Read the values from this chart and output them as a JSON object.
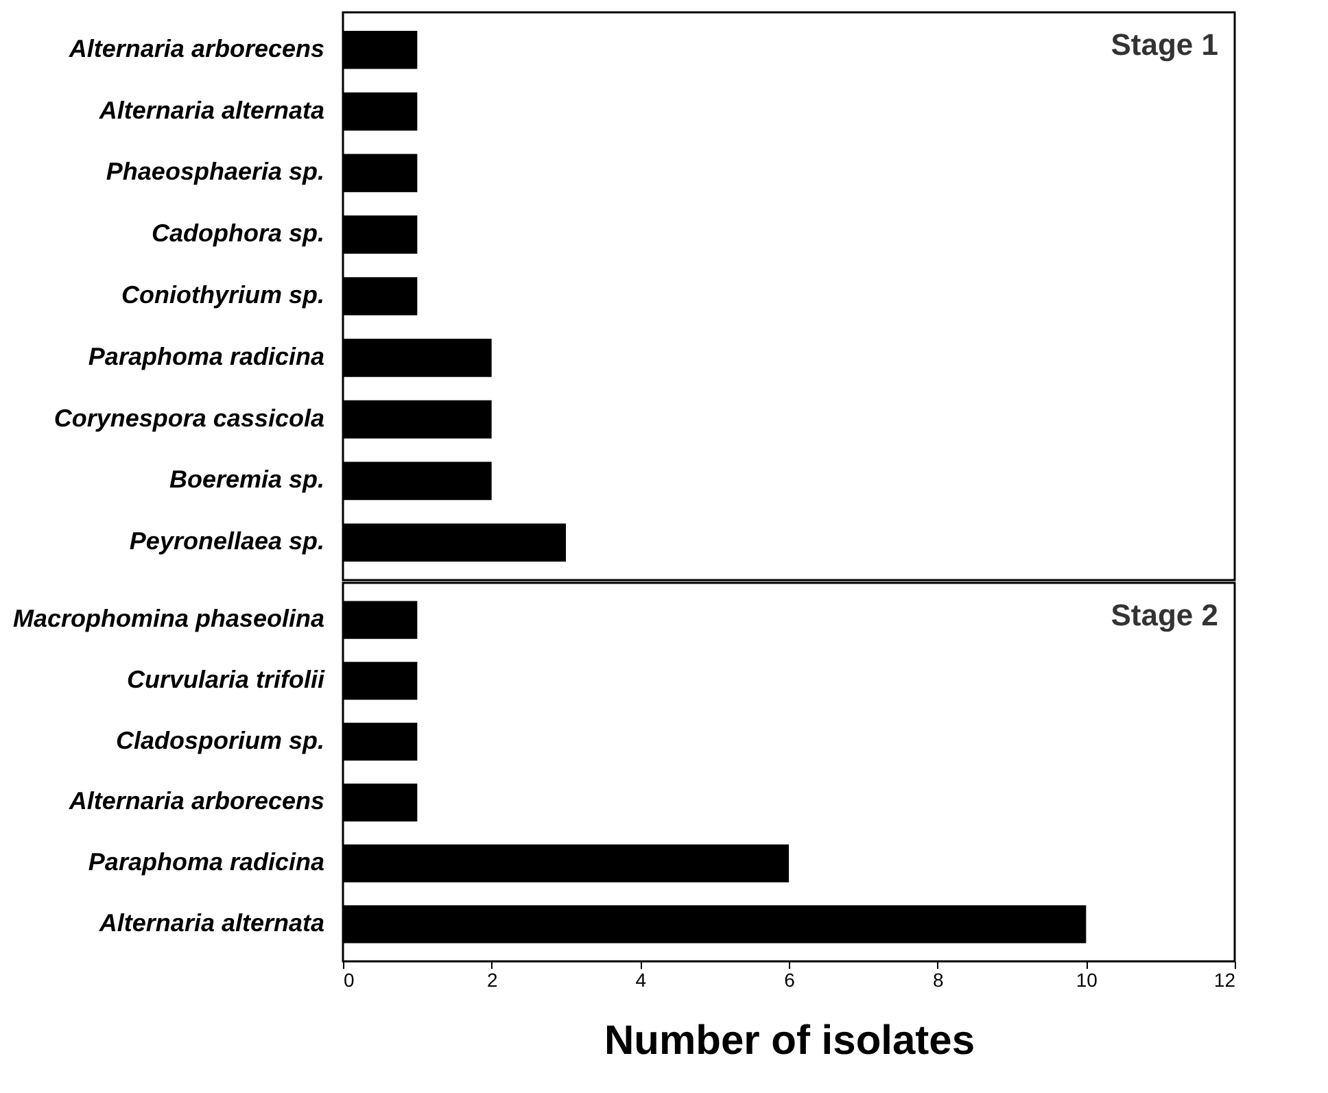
{
  "chart_data": [
    {
      "type": "bar",
      "orientation": "horizontal",
      "categories": [
        "Alternaria arborecens",
        "Alternaria alternata",
        "Phaeosphaeria sp.",
        "Cadophora sp.",
        "Coniothyrium sp.",
        "Paraphoma radicina",
        "Corynespora cassicola",
        "Boeremia sp.",
        "Peyronellaea sp."
      ],
      "values": [
        1,
        1,
        1,
        1,
        1,
        2,
        2,
        2,
        3
      ],
      "color": "#000000",
      "xlim": [
        0,
        12
      ],
      "xticks": [
        0,
        2,
        4,
        6,
        8,
        10,
        12
      ],
      "tick_labels": "y",
      "annotations": [
        "Stage 1"
      ]
    },
    {
      "type": "bar",
      "orientation": "horizontal",
      "categories": [
        "Macrophomina phaseolina",
        "Curvularia trifolii",
        "Cladosporium sp.",
        "Alternaria arborecens",
        "Paraphoma radicina",
        "Alternaria alternata"
      ],
      "values": [
        1,
        1,
        1,
        1,
        6,
        10
      ],
      "color": "#000000",
      "xlim": [
        0,
        12
      ],
      "xticks": [
        0,
        2,
        4,
        6,
        8,
        10,
        12
      ],
      "xlabel": "Number of isolates",
      "annotations": [
        "Stage 2"
      ]
    }
  ]
}
